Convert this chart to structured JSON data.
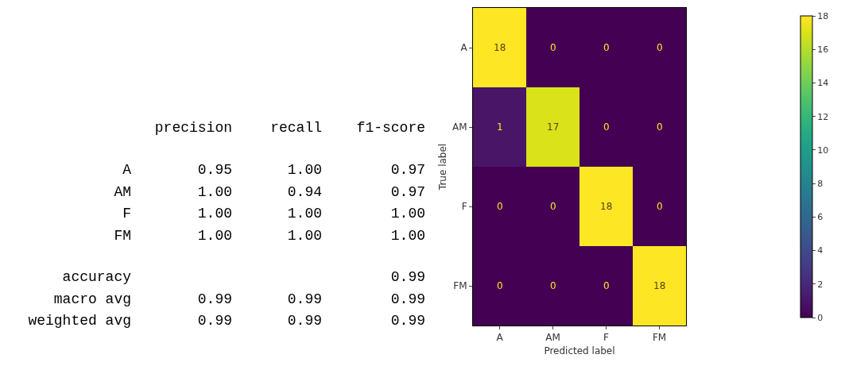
{
  "chart_data": [
    {
      "type": "other",
      "categories": [
        "precision",
        "recall",
        "f1-score"
      ],
      "y_categories": [
        "A",
        "AM",
        "F",
        "FM",
        "accuracy",
        "macro avg",
        "weighted avg"
      ],
      "cell_labels": [
        [
          "0.95",
          "1.00",
          "0.97"
        ],
        [
          "1.00",
          "0.94",
          "0.97"
        ],
        [
          "1.00",
          "1.00",
          "1.00"
        ],
        [
          "1.00",
          "1.00",
          "1.00"
        ],
        [
          null,
          null,
          "0.99"
        ],
        [
          "0.99",
          "0.99",
          "0.99"
        ],
        [
          "0.99",
          "0.99",
          "0.99"
        ]
      ]
    },
    {
      "type": "heatmap",
      "categories": [
        "A",
        "AM",
        "F",
        "FM"
      ],
      "y_categories": [
        "A",
        "AM",
        "F",
        "FM"
      ],
      "cells": [
        [
          18,
          0,
          0,
          0
        ],
        [
          1,
          17,
          0,
          0
        ],
        [
          0,
          0,
          18,
          0
        ],
        [
          0,
          0,
          0,
          18
        ]
      ],
      "xlabel": "Predicted label",
      "ylabel": "True label",
      "clim": [
        0,
        18
      ],
      "cticks": [
        0,
        2,
        4,
        6,
        8,
        10,
        12,
        14,
        16,
        18
      ],
      "data_labels": true
    }
  ]
}
